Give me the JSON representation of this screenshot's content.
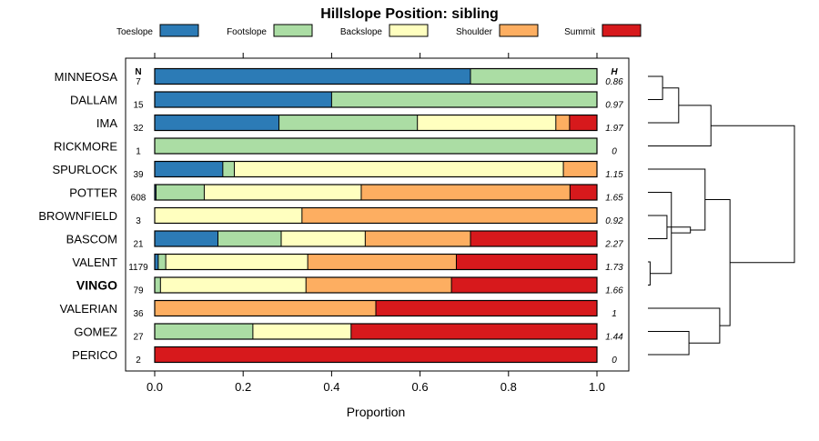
{
  "chart_data": {
    "type": "bar",
    "subtype": "stacked-horizontal-proportion",
    "title": "Hillslope Position: sibling",
    "xlabel": "Proportion",
    "ylabel": "",
    "xlim": [
      0,
      1
    ],
    "x_ticks": [
      "0.0",
      "0.2",
      "0.4",
      "0.6",
      "0.8",
      "1.0"
    ],
    "n_header": "N",
    "h_header": "H",
    "highlight": "VINGO",
    "legend_position": "top",
    "series": [
      {
        "name": "Toeslope",
        "color": "#2c7bb6"
      },
      {
        "name": "Footslope",
        "color": "#abdda4"
      },
      {
        "name": "Backslope",
        "color": "#ffffbf"
      },
      {
        "name": "Shoulder",
        "color": "#fdae61"
      },
      {
        "name": "Summit",
        "color": "#d7191c"
      }
    ],
    "categories": [
      {
        "name": "MINNEOSA",
        "n": "7",
        "h": "0.86",
        "values": [
          0.714,
          0.286,
          0,
          0,
          0
        ]
      },
      {
        "name": "DALLAM",
        "n": "15",
        "h": "0.97",
        "values": [
          0.4,
          0.6,
          0,
          0,
          0
        ]
      },
      {
        "name": "IMA",
        "n": "32",
        "h": "1.97",
        "values": [
          0.281,
          0.313,
          0.313,
          0.031,
          0.062
        ]
      },
      {
        "name": "RICKMORE",
        "n": "1",
        "h": "0",
        "values": [
          0,
          1,
          0,
          0,
          0
        ]
      },
      {
        "name": "SPURLOCK",
        "n": "39",
        "h": "1.15",
        "values": [
          0.154,
          0.026,
          0.744,
          0.076,
          0
        ]
      },
      {
        "name": "POTTER",
        "n": "608",
        "h": "1.65",
        "values": [
          0.003,
          0.109,
          0.355,
          0.472,
          0.061
        ]
      },
      {
        "name": "BROWNFIELD",
        "n": "3",
        "h": "0.92",
        "values": [
          0,
          0,
          0.333,
          0.667,
          0
        ]
      },
      {
        "name": "BASCOM",
        "n": "21",
        "h": "2.27",
        "values": [
          0.143,
          0.143,
          0.19,
          0.238,
          0.286
        ]
      },
      {
        "name": "VALENT",
        "n": "1179",
        "h": "1.73",
        "values": [
          0.008,
          0.017,
          0.321,
          0.336,
          0.318
        ]
      },
      {
        "name": "VINGO",
        "n": "79",
        "h": "1.66",
        "values": [
          0,
          0.013,
          0.329,
          0.329,
          0.329
        ]
      },
      {
        "name": "VALERIAN",
        "n": "36",
        "h": "1",
        "values": [
          0,
          0,
          0,
          0.5,
          0.5
        ]
      },
      {
        "name": "GOMEZ",
        "n": "27",
        "h": "1.44",
        "values": [
          0,
          0.222,
          0.222,
          0,
          0.556
        ]
      },
      {
        "name": "PERICO",
        "n": "2",
        "h": "0",
        "values": [
          0,
          0,
          0,
          0,
          1
        ]
      }
    ],
    "dendrogram": [
      [
        0,
        1,
        0.1
      ],
      [
        13,
        2,
        0.21
      ],
      [
        14,
        3,
        0.43
      ],
      [
        6,
        7,
        0.13
      ],
      [
        9,
        8,
        0.015
      ],
      [
        5,
        17,
        0.16
      ],
      [
        16,
        18,
        0.29
      ],
      [
        4,
        19,
        0.39
      ],
      [
        11,
        12,
        0.28
      ],
      [
        10,
        21,
        0.49
      ],
      [
        20,
        22,
        0.56
      ],
      [
        15,
        23,
        1.0
      ]
    ]
  }
}
